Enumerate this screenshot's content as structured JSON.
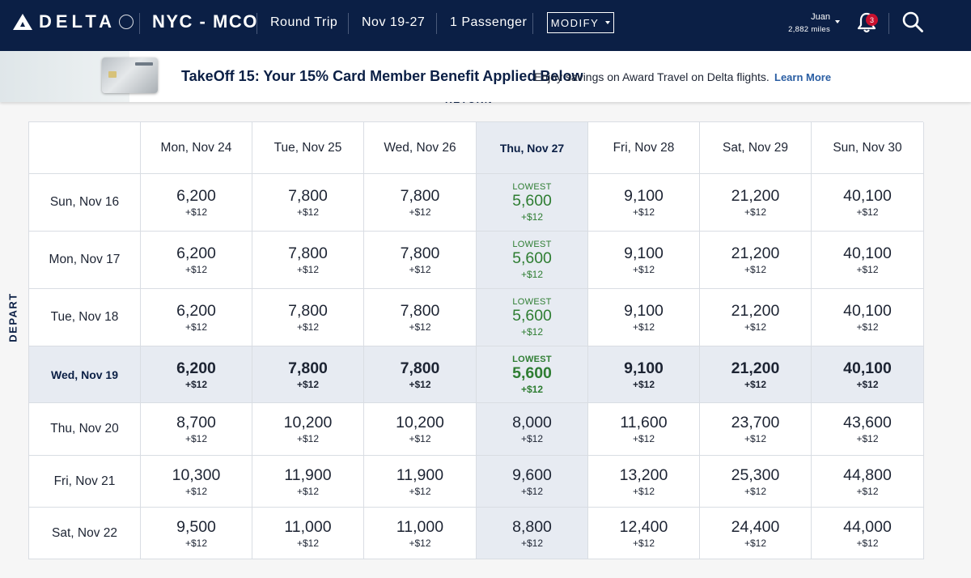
{
  "header": {
    "brand": "DELTA",
    "route": "NYC - MCO",
    "trip_type": "Round Trip",
    "dates": "Nov 19-27",
    "passengers": "1 Passenger",
    "modify_label": "MODIFY",
    "user_name": "Juan",
    "user_miles": "2,882 miles",
    "notification_count": "3"
  },
  "promo": {
    "title": "TakeOff 15: Your 15% Card Member Benefit Applied Below",
    "text": "Enjoy savings on Award Travel on Delta flights.",
    "link": "Learn More"
  },
  "return_label": "RETURN",
  "depart_label": "DEPART",
  "grid": {
    "return_dates": [
      "Mon, Nov 24",
      "Tue, Nov 25",
      "Wed, Nov 26",
      "Thu, Nov 27",
      "Fri, Nov 28",
      "Sat, Nov 29",
      "Sun, Nov 30"
    ],
    "selected_return_index": 3,
    "selected_depart_index": 3,
    "rows": [
      {
        "depart": "Sun, Nov 16",
        "cells": [
          {
            "miles": "6,200",
            "fee": "+$12"
          },
          {
            "miles": "7,800",
            "fee": "+$12"
          },
          {
            "miles": "7,800",
            "fee": "+$12"
          },
          {
            "miles": "5,600",
            "fee": "+$12",
            "badge": "LOWEST"
          },
          {
            "miles": "9,100",
            "fee": "+$12"
          },
          {
            "miles": "21,200",
            "fee": "+$12"
          },
          {
            "miles": "40,100",
            "fee": "+$12"
          }
        ]
      },
      {
        "depart": "Mon, Nov 17",
        "cells": [
          {
            "miles": "6,200",
            "fee": "+$12"
          },
          {
            "miles": "7,800",
            "fee": "+$12"
          },
          {
            "miles": "7,800",
            "fee": "+$12"
          },
          {
            "miles": "5,600",
            "fee": "+$12",
            "badge": "LOWEST"
          },
          {
            "miles": "9,100",
            "fee": "+$12"
          },
          {
            "miles": "21,200",
            "fee": "+$12"
          },
          {
            "miles": "40,100",
            "fee": "+$12"
          }
        ]
      },
      {
        "depart": "Tue, Nov 18",
        "cells": [
          {
            "miles": "6,200",
            "fee": "+$12"
          },
          {
            "miles": "7,800",
            "fee": "+$12"
          },
          {
            "miles": "7,800",
            "fee": "+$12"
          },
          {
            "miles": "5,600",
            "fee": "+$12",
            "badge": "LOWEST"
          },
          {
            "miles": "9,100",
            "fee": "+$12"
          },
          {
            "miles": "21,200",
            "fee": "+$12"
          },
          {
            "miles": "40,100",
            "fee": "+$12"
          }
        ]
      },
      {
        "depart": "Wed, Nov 19",
        "cells": [
          {
            "miles": "6,200",
            "fee": "+$12"
          },
          {
            "miles": "7,800",
            "fee": "+$12"
          },
          {
            "miles": "7,800",
            "fee": "+$12"
          },
          {
            "miles": "5,600",
            "fee": "+$12",
            "badge": "LOWEST"
          },
          {
            "miles": "9,100",
            "fee": "+$12"
          },
          {
            "miles": "21,200",
            "fee": "+$12"
          },
          {
            "miles": "40,100",
            "fee": "+$12"
          }
        ]
      },
      {
        "depart": "Thu, Nov 20",
        "cells": [
          {
            "miles": "8,700",
            "fee": "+$12"
          },
          {
            "miles": "10,200",
            "fee": "+$12"
          },
          {
            "miles": "10,200",
            "fee": "+$12"
          },
          {
            "miles": "8,000",
            "fee": "+$12"
          },
          {
            "miles": "11,600",
            "fee": "+$12"
          },
          {
            "miles": "23,700",
            "fee": "+$12"
          },
          {
            "miles": "43,600",
            "fee": "+$12"
          }
        ]
      },
      {
        "depart": "Fri, Nov 21",
        "cells": [
          {
            "miles": "10,300",
            "fee": "+$12"
          },
          {
            "miles": "11,900",
            "fee": "+$12"
          },
          {
            "miles": "11,900",
            "fee": "+$12"
          },
          {
            "miles": "9,600",
            "fee": "+$12"
          },
          {
            "miles": "13,200",
            "fee": "+$12"
          },
          {
            "miles": "25,300",
            "fee": "+$12"
          },
          {
            "miles": "44,800",
            "fee": "+$12"
          }
        ]
      },
      {
        "depart": "Sat, Nov 22",
        "cells": [
          {
            "miles": "9,500",
            "fee": "+$12"
          },
          {
            "miles": "11,000",
            "fee": "+$12"
          },
          {
            "miles": "11,000",
            "fee": "+$12"
          },
          {
            "miles": "8,800",
            "fee": "+$12"
          },
          {
            "miles": "12,400",
            "fee": "+$12"
          },
          {
            "miles": "24,400",
            "fee": "+$12"
          },
          {
            "miles": "44,000",
            "fee": "+$12"
          }
        ]
      }
    ]
  },
  "colors": {
    "header_bg": "#0b1f45",
    "lowest_green": "#2e7d32",
    "selected_bg": "#e7ebf2"
  }
}
